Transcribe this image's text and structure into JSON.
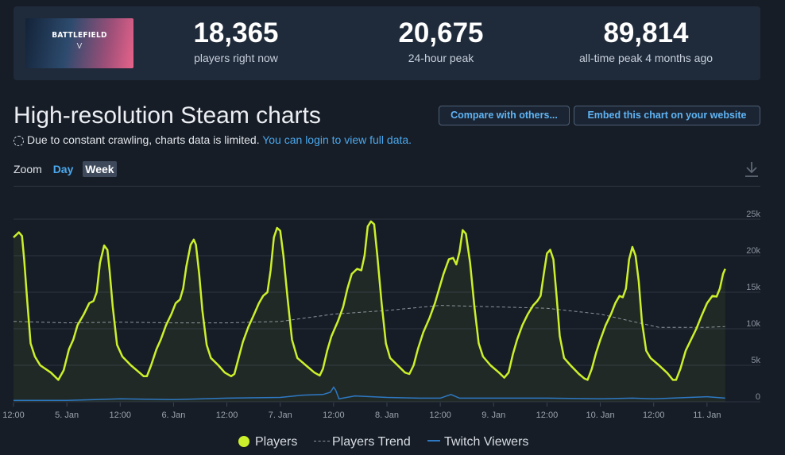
{
  "stats": {
    "banner_title": "BATTLEFIELD",
    "banner_sub": "V",
    "current": {
      "value": "18,365",
      "label": "players right now"
    },
    "peak24": {
      "value": "20,675",
      "label": "24-hour peak"
    },
    "alltime": {
      "value": "89,814",
      "label": "all-time peak 4 months ago"
    }
  },
  "heading": "High-resolution Steam charts",
  "buttons": {
    "compare": "Compare with others...",
    "embed": "Embed this chart on your website"
  },
  "notice": {
    "text": "Due to constant crawling, charts data is limited.",
    "link": "You can login to view full data."
  },
  "zoom": {
    "label": "Zoom",
    "day": "Day",
    "week": "Week"
  },
  "chart_data": {
    "type": "line",
    "x_labels": [
      "12:00",
      "5. Jan",
      "12:00",
      "6. Jan",
      "12:00",
      "7. Jan",
      "12:00",
      "8. Jan",
      "12:00",
      "9. Jan",
      "12:00",
      "10. Jan",
      "12:00",
      "11. Jan"
    ],
    "x_positions_days": [
      0.5,
      1,
      1.5,
      2,
      2.5,
      3,
      3.5,
      4,
      4.5,
      5,
      5.5,
      6,
      6.5,
      7
    ],
    "y_ticks": [
      "0",
      "5k",
      "10k",
      "15k",
      "20k",
      "25k"
    ],
    "ylim": [
      0,
      25000
    ],
    "xlim_days": [
      0.5,
      7.5
    ],
    "series": [
      {
        "name": "Players",
        "color": "#ccf02b",
        "points": [
          [
            0.5,
            22500
          ],
          [
            0.55,
            23200
          ],
          [
            0.58,
            22700
          ],
          [
            0.6,
            19500
          ],
          [
            0.63,
            13500
          ],
          [
            0.66,
            8000
          ],
          [
            0.7,
            6200
          ],
          [
            0.75,
            5000
          ],
          [
            0.85,
            4000
          ],
          [
            0.92,
            3000
          ],
          [
            0.97,
            4300
          ],
          [
            1.02,
            7200
          ],
          [
            1.06,
            8500
          ],
          [
            1.1,
            10500
          ],
          [
            1.16,
            12000
          ],
          [
            1.21,
            13500
          ],
          [
            1.25,
            13800
          ],
          [
            1.28,
            15000
          ],
          [
            1.31,
            19000
          ],
          [
            1.35,
            21400
          ],
          [
            1.38,
            20800
          ],
          [
            1.4,
            18000
          ],
          [
            1.43,
            13000
          ],
          [
            1.47,
            7800
          ],
          [
            1.52,
            6200
          ],
          [
            1.6,
            5000
          ],
          [
            1.68,
            4000
          ],
          [
            1.72,
            3500
          ],
          [
            1.75,
            3500
          ],
          [
            1.79,
            5000
          ],
          [
            1.84,
            7200
          ],
          [
            1.88,
            8500
          ],
          [
            1.93,
            10500
          ],
          [
            1.98,
            12000
          ],
          [
            2.02,
            13500
          ],
          [
            2.06,
            14000
          ],
          [
            2.09,
            15500
          ],
          [
            2.12,
            18500
          ],
          [
            2.16,
            21500
          ],
          [
            2.19,
            22200
          ],
          [
            2.21,
            21500
          ],
          [
            2.24,
            17500
          ],
          [
            2.27,
            12500
          ],
          [
            2.31,
            7800
          ],
          [
            2.35,
            6000
          ],
          [
            2.42,
            5000
          ],
          [
            2.48,
            4000
          ],
          [
            2.54,
            3500
          ],
          [
            2.57,
            3800
          ],
          [
            2.61,
            6000
          ],
          [
            2.65,
            8200
          ],
          [
            2.7,
            10200
          ],
          [
            2.75,
            11800
          ],
          [
            2.8,
            13500
          ],
          [
            2.84,
            14500
          ],
          [
            2.88,
            15000
          ],
          [
            2.91,
            18000
          ],
          [
            2.94,
            22500
          ],
          [
            2.97,
            23800
          ],
          [
            3.0,
            23400
          ],
          [
            3.03,
            20000
          ],
          [
            3.07,
            14000
          ],
          [
            3.11,
            8500
          ],
          [
            3.16,
            6000
          ],
          [
            3.24,
            5000
          ],
          [
            3.32,
            4000
          ],
          [
            3.37,
            3600
          ],
          [
            3.4,
            4500
          ],
          [
            3.44,
            7000
          ],
          [
            3.48,
            9000
          ],
          [
            3.54,
            11000
          ],
          [
            3.59,
            13000
          ],
          [
            3.63,
            15500
          ],
          [
            3.67,
            17500
          ],
          [
            3.72,
            18200
          ],
          [
            3.76,
            18000
          ],
          [
            3.79,
            20000
          ],
          [
            3.82,
            24000
          ],
          [
            3.85,
            24700
          ],
          [
            3.88,
            24300
          ],
          [
            3.91,
            20000
          ],
          [
            3.95,
            13500
          ],
          [
            3.99,
            8000
          ],
          [
            4.03,
            6000
          ],
          [
            4.1,
            5000
          ],
          [
            4.17,
            4000
          ],
          [
            4.21,
            3800
          ],
          [
            4.25,
            5000
          ],
          [
            4.29,
            7200
          ],
          [
            4.34,
            9500
          ],
          [
            4.4,
            11500
          ],
          [
            4.45,
            13500
          ],
          [
            4.49,
            15500
          ],
          [
            4.53,
            17500
          ],
          [
            4.58,
            19500
          ],
          [
            4.62,
            19700
          ],
          [
            4.65,
            18800
          ],
          [
            4.68,
            20500
          ],
          [
            4.71,
            23500
          ],
          [
            4.74,
            23000
          ],
          [
            4.78,
            19000
          ],
          [
            4.82,
            13000
          ],
          [
            4.86,
            8000
          ],
          [
            4.9,
            6200
          ],
          [
            4.97,
            5000
          ],
          [
            5.05,
            4000
          ],
          [
            5.1,
            3300
          ],
          [
            5.14,
            4000
          ],
          [
            5.18,
            6500
          ],
          [
            5.22,
            8500
          ],
          [
            5.27,
            10500
          ],
          [
            5.32,
            12000
          ],
          [
            5.37,
            13200
          ],
          [
            5.41,
            13800
          ],
          [
            5.44,
            14500
          ],
          [
            5.47,
            17500
          ],
          [
            5.5,
            20300
          ],
          [
            5.53,
            20800
          ],
          [
            5.56,
            19500
          ],
          [
            5.59,
            14500
          ],
          [
            5.62,
            9000
          ],
          [
            5.66,
            6000
          ],
          [
            5.72,
            5000
          ],
          [
            5.8,
            3800
          ],
          [
            5.85,
            3200
          ],
          [
            5.88,
            3000
          ],
          [
            5.92,
            4500
          ],
          [
            5.96,
            6700
          ],
          [
            6.0,
            8500
          ],
          [
            6.05,
            10500
          ],
          [
            6.1,
            12000
          ],
          [
            6.14,
            13500
          ],
          [
            6.18,
            14500
          ],
          [
            6.21,
            14300
          ],
          [
            6.24,
            15500
          ],
          [
            6.27,
            19500
          ],
          [
            6.3,
            21200
          ],
          [
            6.33,
            20000
          ],
          [
            6.36,
            16500
          ],
          [
            6.39,
            11000
          ],
          [
            6.43,
            7000
          ],
          [
            6.47,
            6000
          ],
          [
            6.55,
            5000
          ],
          [
            6.63,
            3900
          ],
          [
            6.68,
            3000
          ],
          [
            6.71,
            3000
          ],
          [
            6.75,
            4500
          ],
          [
            6.8,
            7000
          ],
          [
            6.85,
            8500
          ],
          [
            6.9,
            10000
          ],
          [
            6.95,
            11800
          ],
          [
            7.0,
            13500
          ],
          [
            7.05,
            14500
          ],
          [
            7.09,
            14400
          ],
          [
            7.12,
            15500
          ],
          [
            7.15,
            17500
          ],
          [
            7.17,
            18200
          ]
        ]
      },
      {
        "name": "Players Trend",
        "color": "#8e959e",
        "points": [
          [
            0.5,
            11000
          ],
          [
            1.0,
            10800
          ],
          [
            1.5,
            10900
          ],
          [
            2.0,
            10800
          ],
          [
            2.5,
            10800
          ],
          [
            3.0,
            11000
          ],
          [
            3.5,
            12000
          ],
          [
            4.0,
            12500
          ],
          [
            4.5,
            13200
          ],
          [
            5.0,
            13000
          ],
          [
            5.5,
            12800
          ],
          [
            6.0,
            12000
          ],
          [
            6.3,
            11000
          ],
          [
            6.55,
            10200
          ],
          [
            7.0,
            10200
          ],
          [
            7.17,
            10300
          ]
        ]
      },
      {
        "name": "Twitch Viewers",
        "color": "#2d79c4",
        "points": [
          [
            0.5,
            200
          ],
          [
            1.0,
            200
          ],
          [
            1.5,
            400
          ],
          [
            2.0,
            300
          ],
          [
            2.5,
            500
          ],
          [
            3.0,
            600
          ],
          [
            3.2,
            900
          ],
          [
            3.4,
            1000
          ],
          [
            3.47,
            1300
          ],
          [
            3.5,
            2000
          ],
          [
            3.52,
            1600
          ],
          [
            3.55,
            400
          ],
          [
            3.7,
            800
          ],
          [
            4.0,
            600
          ],
          [
            4.3,
            500
          ],
          [
            4.5,
            500
          ],
          [
            4.6,
            1000
          ],
          [
            4.68,
            500
          ],
          [
            5.0,
            500
          ],
          [
            5.5,
            500
          ],
          [
            6.0,
            400
          ],
          [
            6.3,
            500
          ],
          [
            6.5,
            400
          ],
          [
            7.0,
            700
          ],
          [
            7.17,
            500
          ]
        ]
      }
    ]
  },
  "legend": [
    {
      "label": "Players",
      "color": "#ccf02b"
    },
    {
      "label": "Players Trend",
      "color": "#8e959e"
    },
    {
      "label": "Twitch Viewers",
      "color": "#2d79c4"
    }
  ]
}
